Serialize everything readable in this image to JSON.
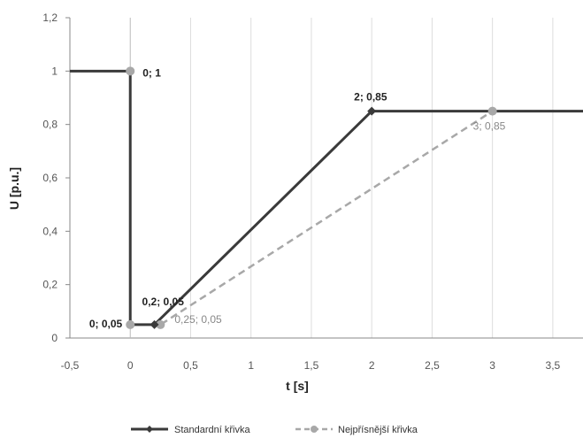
{
  "chart_data": {
    "type": "line",
    "xlabel": "t [s]",
    "ylabel": "U [p.u.]",
    "xlim": [
      -0.5,
      3.75
    ],
    "ylim": [
      0,
      1.2
    ],
    "grid": "vertical",
    "legend_position": "bottom",
    "xticks": [
      "-0,5",
      "0",
      "0,5",
      "1",
      "1,5",
      "2",
      "2,5",
      "3",
      "3,5"
    ],
    "yticks": [
      "0",
      "0,2",
      "0,4",
      "0,6",
      "0,8",
      "1",
      "1,2"
    ],
    "series": [
      {
        "name": "Standardní křivka",
        "color": "#3a3a3a",
        "dash": false,
        "points": [
          {
            "x": -0.5,
            "y": 1
          },
          {
            "x": 0,
            "y": 1
          },
          {
            "x": 0,
            "y": 0.05
          },
          {
            "x": 0.2,
            "y": 0.05
          },
          {
            "x": 2,
            "y": 0.85
          },
          {
            "x": 3.75,
            "y": 0.85
          }
        ],
        "markers": [
          {
            "x": 0.2,
            "y": 0.05,
            "label": "0,2; 0,05"
          },
          {
            "x": 2,
            "y": 0.85,
            "label": "2; 0,85"
          }
        ]
      },
      {
        "name": "Nejpřísnější křivka",
        "color": "#a8a8a8",
        "dash": true,
        "points": [
          {
            "x": -0.5,
            "y": 1
          },
          {
            "x": 0,
            "y": 1
          },
          {
            "x": 0,
            "y": 0.05
          },
          {
            "x": 0.25,
            "y": 0.05
          },
          {
            "x": 3,
            "y": 0.85
          },
          {
            "x": 3.75,
            "y": 0.85
          }
        ],
        "markers": [
          {
            "x": 0,
            "y": 1,
            "label": "0; 1"
          },
          {
            "x": 0,
            "y": 0.05,
            "label": "0; 0,05"
          },
          {
            "x": 0.25,
            "y": 0.05,
            "label": "0,25; 0,05"
          },
          {
            "x": 3,
            "y": 0.85,
            "label": "3; 0,85"
          }
        ]
      }
    ]
  }
}
